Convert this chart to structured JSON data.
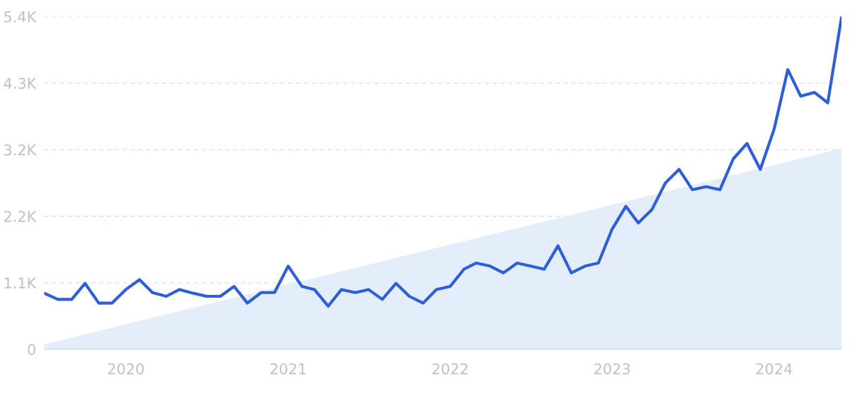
{
  "chart_data": {
    "type": "line",
    "x": [
      "2019-07",
      "2019-08",
      "2019-09",
      "2019-10",
      "2019-11",
      "2019-12",
      "2020-01",
      "2020-02",
      "2020-03",
      "2020-04",
      "2020-05",
      "2020-06",
      "2020-07",
      "2020-08",
      "2020-09",
      "2020-10",
      "2020-11",
      "2020-12",
      "2021-01",
      "2021-02",
      "2021-03",
      "2021-04",
      "2021-05",
      "2021-06",
      "2021-07",
      "2021-08",
      "2021-09",
      "2021-10",
      "2021-11",
      "2021-12",
      "2022-01",
      "2022-02",
      "2022-03",
      "2022-04",
      "2022-05",
      "2022-06",
      "2022-07",
      "2022-08",
      "2022-09",
      "2022-10",
      "2022-11",
      "2022-12",
      "2023-01",
      "2023-02",
      "2023-03",
      "2023-04",
      "2023-05",
      "2023-06",
      "2023-07",
      "2023-08",
      "2023-09",
      "2023-10",
      "2023-11",
      "2023-12",
      "2024-01",
      "2024-02",
      "2024-03",
      "2024-04",
      "2024-05",
      "2024-06"
    ],
    "series": [
      {
        "type": "area",
        "color": "#e4eefb",
        "x": [
          "2019-07",
          "2024-06"
        ],
        "values": [
          80,
          3260
        ]
      },
      {
        "color": "#2f5fd6",
        "values": [
          910,
          810,
          810,
          1070,
          750,
          750,
          970,
          1130,
          920,
          860,
          970,
          910,
          860,
          860,
          1020,
          750,
          920,
          920,
          1350,
          1020,
          970,
          700,
          970,
          920,
          970,
          810,
          1070,
          860,
          750,
          970,
          1020,
          1300,
          1400,
          1350,
          1240,
          1400,
          1350,
          1300,
          1680,
          1240,
          1350,
          1400,
          1950,
          2320,
          2050,
          2270,
          2700,
          2920,
          2590,
          2640,
          2590,
          3090,
          3340,
          2920,
          3570,
          4540,
          4110,
          4170,
          4000,
          5390
        ]
      }
    ],
    "xlim": [
      "2019-07",
      "2024-06"
    ],
    "xticks": [
      {
        "value": "2020-01",
        "label": "2020"
      },
      {
        "value": "2021-01",
        "label": "2021"
      },
      {
        "value": "2022-01",
        "label": "2022"
      },
      {
        "value": "2023-01",
        "label": "2023"
      },
      {
        "value": "2024-01",
        "label": "2024"
      }
    ],
    "ylim": [
      0,
      5400
    ],
    "yticks": [
      0,
      {
        "value": 1080,
        "label": "1.1K"
      },
      {
        "value": 2160,
        "label": "2.2K"
      },
      {
        "value": 3240,
        "label": "3.2K"
      },
      {
        "value": 4320,
        "label": "4.3K"
      },
      {
        "value": 5400,
        "label": "5.4K"
      }
    ],
    "grid": "y",
    "line_style": "solid",
    "marker": "none",
    "legend": false
  }
}
